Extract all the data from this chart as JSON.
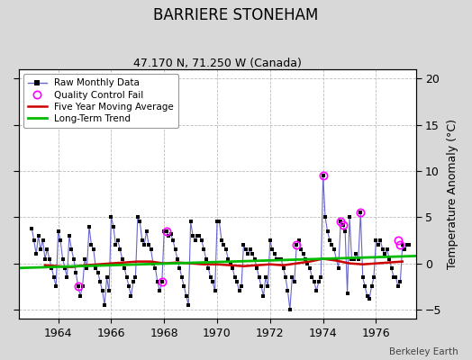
{
  "title": "BARRIERE STONEHAM",
  "subtitle": "47.170 N, 71.250 W (Canada)",
  "ylabel": "Temperature Anomaly (°C)",
  "watermark": "Berkeley Earth",
  "ylim": [
    -6,
    21
  ],
  "yticks": [
    -5,
    0,
    5,
    10,
    15,
    20
  ],
  "xlim": [
    1962.5,
    1977.5
  ],
  "xticks": [
    1964,
    1966,
    1968,
    1970,
    1972,
    1974,
    1976
  ],
  "background_color": "#d8d8d8",
  "plot_bg_color": "#ffffff",
  "raw_color": "#6666cc",
  "marker_color": "#000000",
  "qc_color": "#ff00ff",
  "moving_avg_color": "#cc0000",
  "trend_color": "#00bb00",
  "raw_data_x": [
    1963.0,
    1963.083,
    1963.167,
    1963.25,
    1963.333,
    1963.417,
    1963.5,
    1963.583,
    1963.667,
    1963.75,
    1963.833,
    1963.917,
    1964.0,
    1964.083,
    1964.167,
    1964.25,
    1964.333,
    1964.417,
    1964.5,
    1964.583,
    1964.667,
    1964.75,
    1964.833,
    1964.917,
    1965.0,
    1965.083,
    1965.167,
    1965.25,
    1965.333,
    1965.417,
    1965.5,
    1965.583,
    1965.667,
    1965.75,
    1965.833,
    1965.917,
    1966.0,
    1966.083,
    1966.167,
    1966.25,
    1966.333,
    1966.417,
    1966.5,
    1966.583,
    1966.667,
    1966.75,
    1966.833,
    1966.917,
    1967.0,
    1967.083,
    1967.167,
    1967.25,
    1967.333,
    1967.417,
    1967.5,
    1967.583,
    1967.667,
    1967.75,
    1967.833,
    1967.917,
    1968.0,
    1968.083,
    1968.167,
    1968.25,
    1968.333,
    1968.417,
    1968.5,
    1968.583,
    1968.667,
    1968.75,
    1968.833,
    1968.917,
    1969.0,
    1969.083,
    1969.167,
    1969.25,
    1969.333,
    1969.417,
    1969.5,
    1969.583,
    1969.667,
    1969.75,
    1969.833,
    1969.917,
    1970.0,
    1970.083,
    1970.167,
    1970.25,
    1970.333,
    1970.417,
    1970.5,
    1970.583,
    1970.667,
    1970.75,
    1970.833,
    1970.917,
    1971.0,
    1971.083,
    1971.167,
    1971.25,
    1971.333,
    1971.417,
    1971.5,
    1971.583,
    1971.667,
    1971.75,
    1971.833,
    1971.917,
    1972.0,
    1972.083,
    1972.167,
    1972.25,
    1972.333,
    1972.417,
    1972.5,
    1972.583,
    1972.667,
    1972.75,
    1972.833,
    1972.917,
    1973.0,
    1973.083,
    1973.167,
    1973.25,
    1973.333,
    1973.417,
    1973.5,
    1973.583,
    1973.667,
    1973.75,
    1973.833,
    1973.917,
    1974.0,
    1974.083,
    1974.167,
    1974.25,
    1974.333,
    1974.417,
    1974.5,
    1974.583,
    1974.667,
    1974.75,
    1974.833,
    1974.917,
    1975.0,
    1975.083,
    1975.167,
    1975.25,
    1975.333,
    1975.417,
    1975.5,
    1975.583,
    1975.667,
    1975.75,
    1975.833,
    1975.917,
    1976.0,
    1976.083,
    1976.167,
    1976.25,
    1976.333,
    1976.417,
    1976.5,
    1976.583,
    1976.667,
    1976.75,
    1976.833,
    1976.917,
    1977.0,
    1977.083,
    1977.167,
    1977.25
  ],
  "raw_data_y": [
    3.8,
    2.5,
    1.0,
    3.0,
    1.5,
    2.5,
    0.5,
    1.5,
    0.5,
    -0.5,
    -1.5,
    -2.5,
    3.5,
    2.5,
    0.5,
    -0.5,
    -1.5,
    3.0,
    1.5,
    0.5,
    -1.0,
    -2.5,
    -3.5,
    -2.5,
    0.5,
    -0.5,
    4.0,
    2.0,
    1.5,
    -0.5,
    -1.0,
    -2.0,
    -3.0,
    -4.5,
    -1.5,
    -3.0,
    5.0,
    4.0,
    2.0,
    2.5,
    1.5,
    0.5,
    -0.5,
    -1.5,
    -2.5,
    -3.5,
    -2.0,
    -1.5,
    5.0,
    4.5,
    2.5,
    2.0,
    3.5,
    2.0,
    1.5,
    0.0,
    -0.5,
    -2.0,
    -3.0,
    -2.0,
    3.5,
    3.5,
    3.0,
    3.2,
    2.5,
    1.5,
    0.5,
    -0.5,
    -1.5,
    -2.5,
    -3.5,
    -4.5,
    4.5,
    3.0,
    2.5,
    3.0,
    3.0,
    2.5,
    1.5,
    0.5,
    -0.5,
    -1.5,
    -2.0,
    -3.0,
    4.5,
    4.5,
    2.5,
    2.0,
    1.5,
    0.5,
    0.0,
    -0.5,
    -1.5,
    -2.0,
    -3.0,
    -2.5,
    2.0,
    1.5,
    1.0,
    1.5,
    1.0,
    0.5,
    -0.5,
    -1.5,
    -2.5,
    -3.5,
    -1.5,
    -2.5,
    2.5,
    1.5,
    1.0,
    0.5,
    0.5,
    0.5,
    -0.5,
    -1.5,
    -3.0,
    -5.0,
    -1.5,
    -2.0,
    2.0,
    2.5,
    1.5,
    1.0,
    0.5,
    0.0,
    -0.5,
    -1.5,
    -2.0,
    -3.0,
    -2.0,
    -1.5,
    9.5,
    5.0,
    3.5,
    2.5,
    2.0,
    1.5,
    0.5,
    -0.5,
    4.5,
    4.2,
    3.5,
    -3.2,
    5.0,
    0.5,
    0.5,
    1.0,
    0.5,
    5.5,
    -1.5,
    -2.5,
    -3.5,
    -3.8,
    -2.5,
    -1.5,
    2.5,
    2.0,
    2.5,
    1.5,
    1.0,
    1.5,
    0.5,
    -0.5,
    -1.5,
    -1.5,
    -2.5,
    -2.0,
    2.0,
    1.5,
    2.0,
    2.0
  ],
  "qc_points_x": [
    1964.75,
    1967.917,
    1968.083,
    1973.0,
    1974.0,
    1974.667,
    1974.75,
    1975.417,
    1976.833,
    1976.917
  ],
  "qc_points_y": [
    -2.5,
    -2.0,
    3.5,
    2.0,
    9.5,
    4.5,
    4.2,
    5.5,
    2.5,
    2.0
  ],
  "moving_avg_x": [
    1963.5,
    1964.0,
    1964.5,
    1965.0,
    1965.5,
    1966.0,
    1966.5,
    1967.0,
    1967.5,
    1968.0,
    1968.5,
    1969.0,
    1969.5,
    1970.0,
    1970.5,
    1971.0,
    1971.5,
    1972.0,
    1972.5,
    1973.0,
    1973.5,
    1974.0,
    1974.5,
    1975.0,
    1975.5,
    1976.0,
    1976.5,
    1977.0
  ],
  "moving_avg_y": [
    -0.2,
    -0.3,
    -0.4,
    -0.2,
    -0.1,
    0.0,
    0.1,
    0.2,
    0.2,
    0.0,
    0.1,
    0.0,
    -0.1,
    -0.1,
    -0.2,
    -0.3,
    -0.2,
    -0.1,
    -0.2,
    0.0,
    0.2,
    0.5,
    0.3,
    0.0,
    -0.1,
    0.0,
    0.1,
    0.2
  ],
  "trend_x": [
    1962.5,
    1977.5
  ],
  "trend_y": [
    -0.5,
    0.8
  ]
}
